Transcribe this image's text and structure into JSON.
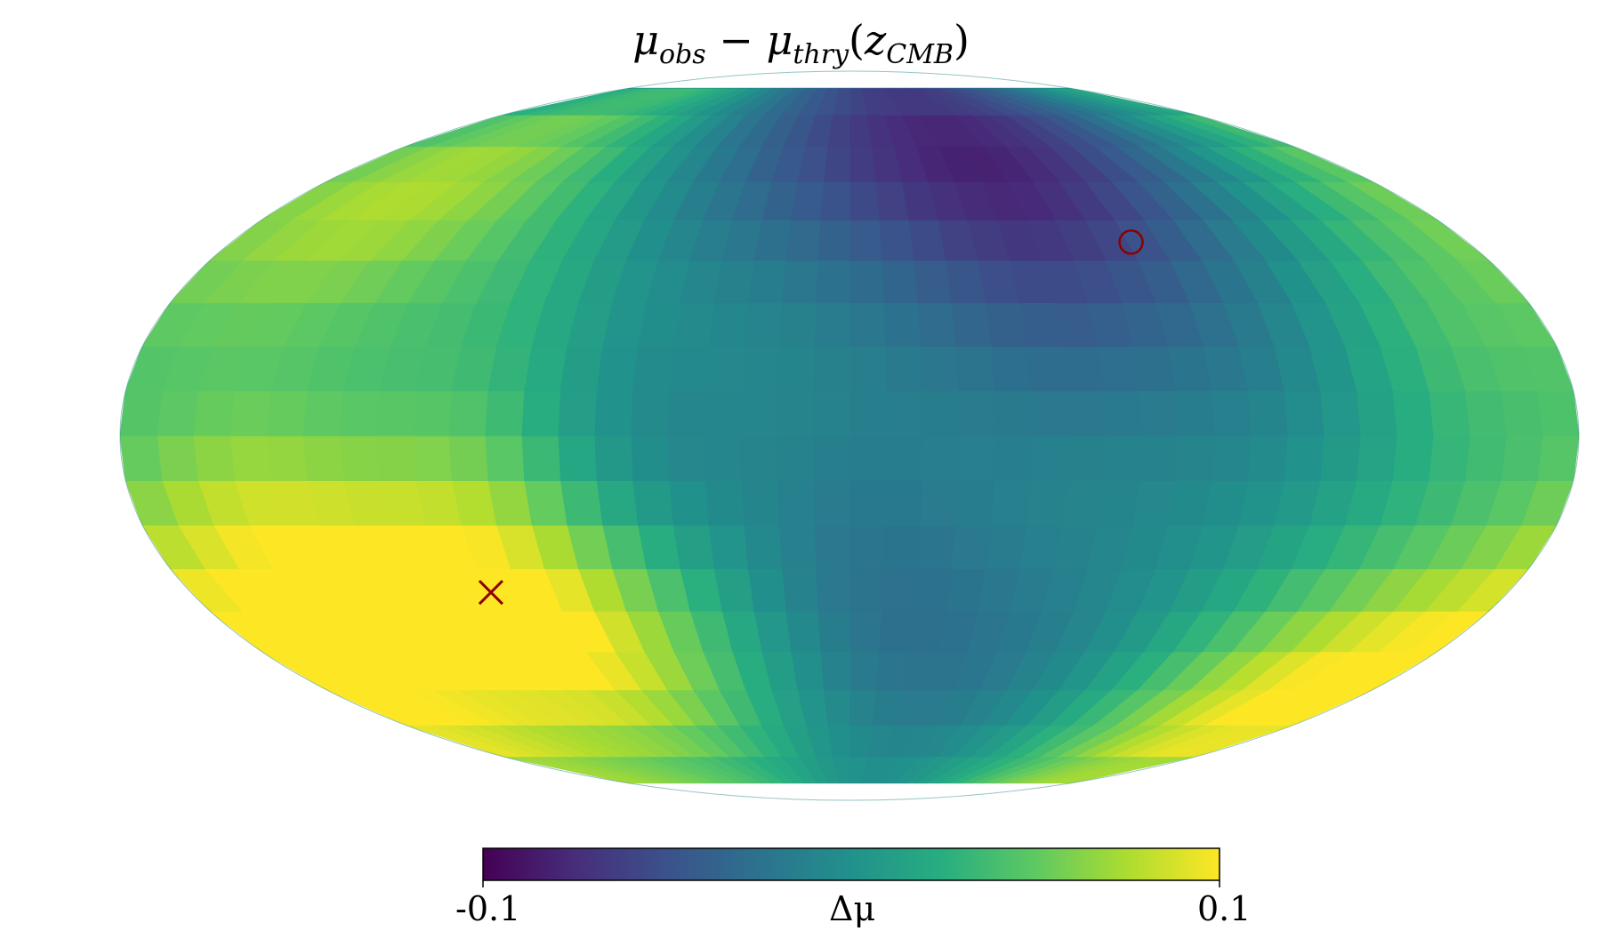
{
  "chart_data": {
    "type": "heatmap",
    "projection": "mollweide",
    "title": "μobs − μthry(zCMB)",
    "title_parts": {
      "a": "μ",
      "a_sub": "obs",
      "op": " − ",
      "b": "μ",
      "b_sub": "thry",
      "open": "(z",
      "c_sub": "CMB",
      "close": ")"
    },
    "colormap": "viridis",
    "colorbar": {
      "label": "Δμ",
      "min_label": "-0.1",
      "max_label": "0.1",
      "range": [
        -0.1,
        0.1
      ],
      "orientation": "horizontal",
      "placement": "bottom"
    },
    "markers": {
      "max_direction": {
        "symbol": "x",
        "color": "#8b0000",
        "lon": 98,
        "lat": -32
      },
      "min_direction": {
        "symbol": "o",
        "color": "#8b0000",
        "lon": -82,
        "lat": 40
      }
    },
    "regions": [
      {
        "lon": 100,
        "lat": -35,
        "value": 0.085
      },
      {
        "lon": 150,
        "lat": -25,
        "value": 0.075
      },
      {
        "lon": 60,
        "lat": -40,
        "value": 0.05
      },
      {
        "lon": 130,
        "lat": 55,
        "value": 0.045
      },
      {
        "lon": 160,
        "lat": 45,
        "value": 0.035
      },
      {
        "lon": -165,
        "lat": -55,
        "value": 0.08
      },
      {
        "lon": -155,
        "lat": 20,
        "value": 0.035
      },
      {
        "lon": -120,
        "lat": -55,
        "value": 0.03
      },
      {
        "lon": 30,
        "lat": 20,
        "value": 0.02
      },
      {
        "lon": 85,
        "lat": 15,
        "value": 0.025
      },
      {
        "lon": -10,
        "lat": -60,
        "value": 0.01
      },
      {
        "lon": 55,
        "lat": -5,
        "value": -0.035
      },
      {
        "lon": 20,
        "lat": 55,
        "value": -0.035
      },
      {
        "lon": -60,
        "lat": 65,
        "value": -0.055
      },
      {
        "lon": -50,
        "lat": 35,
        "value": -0.03
      },
      {
        "lon": -5,
        "lat": -40,
        "value": -0.03
      },
      {
        "lon": -60,
        "lat": -55,
        "value": -0.02
      },
      {
        "lon": 10,
        "lat": 10,
        "value": -0.01
      },
      {
        "lon": -100,
        "lat": 20,
        "value": -0.015
      }
    ]
  }
}
